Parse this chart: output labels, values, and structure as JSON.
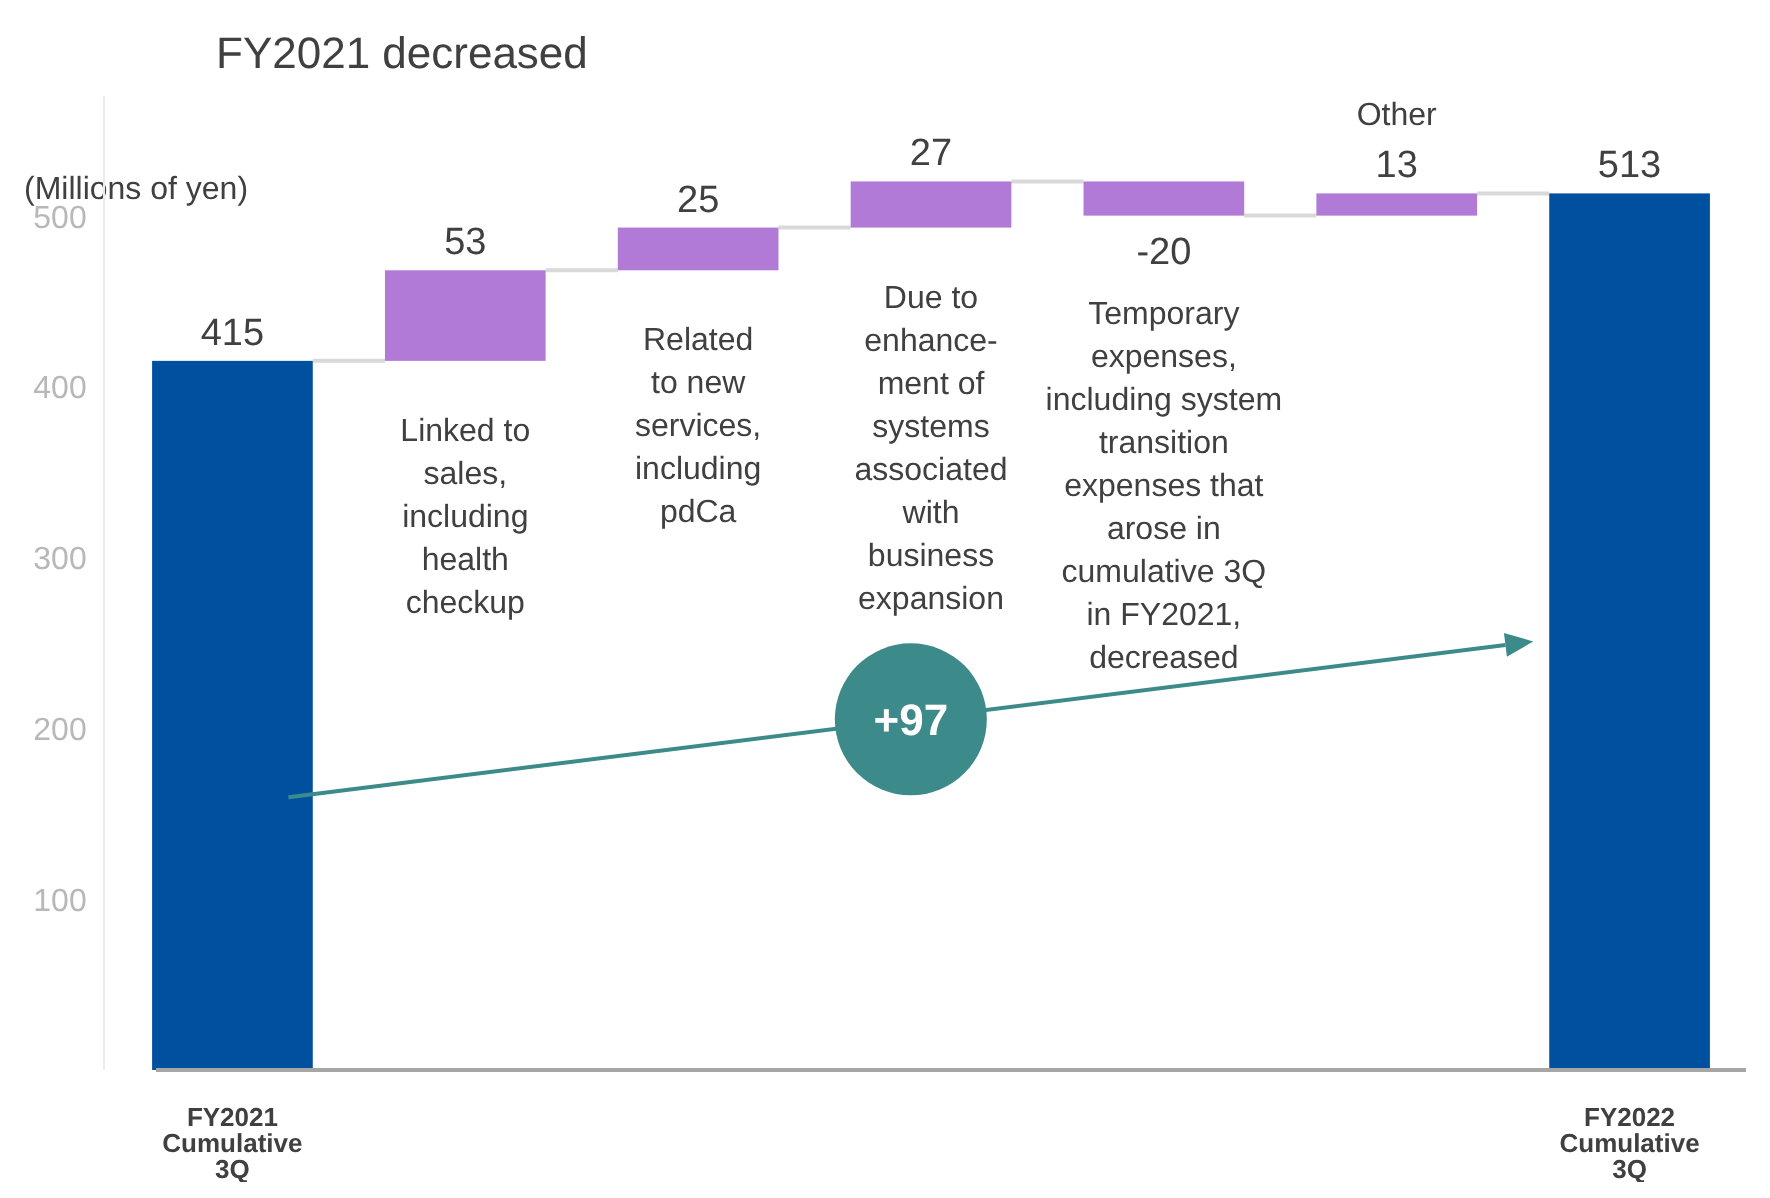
{
  "chart_data": {
    "type": "bar",
    "title": "FY2021 decreased",
    "ylabel": "(Millions of yen)",
    "categories": [
      "FY2021\nCumulative\n3Q",
      null,
      null,
      null,
      null,
      null,
      "FY2022\nCumulative\n3Q"
    ],
    "values": [
      415,
      53,
      25,
      27,
      -20,
      13,
      513
    ],
    "base": [
      0,
      415,
      468,
      493,
      520,
      500,
      0
    ],
    "colors": [
      "#0050a0",
      "#b07ad6",
      "#b07ad6",
      "#b07ad6",
      "#b07ad6",
      "#b07ad6",
      "#0050a0"
    ],
    "data_labels": true,
    "ylim": [
      0,
      570
    ],
    "yticks": [
      100,
      200,
      300,
      400,
      500
    ],
    "annotations": [
      "+97",
      "Linked to\nsales,\nincluding\nhealth\ncheckup",
      "Related\nto new\nservices,\nincluding\npdCa",
      "Due to\nenhance-\nment of\nsystems\nassociated\nwith\nbusiness\nexpansion",
      "Temporary\nexpenses,\nincluding system\ntransition\nexpenses that\narose in\ncumulative 3Q\nin FY2021,\ndecreased",
      "Other"
    ]
  }
}
